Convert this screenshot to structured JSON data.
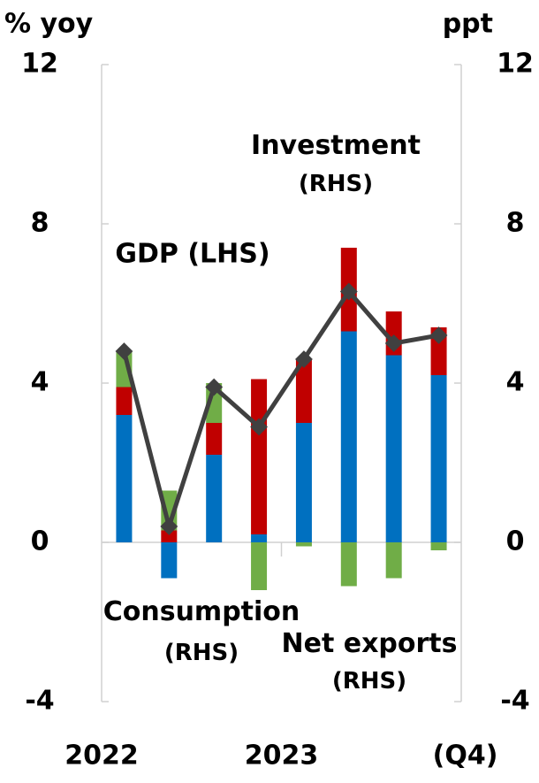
{
  "chart_data": {
    "type": "bar",
    "y_label": "% yoy",
    "y2_label": "ppt",
    "categories": [
      "2022",
      null,
      null,
      null,
      "2023",
      null,
      null,
      "(Q4)"
    ],
    "ylim": [
      -4,
      12
    ],
    "yticks": [
      -4,
      0,
      4,
      8,
      12
    ],
    "y2lim": [
      -4,
      12
    ],
    "y2ticks": [
      -4,
      0,
      4,
      8,
      12
    ],
    "series": [
      {
        "name": "Consumption (RHS)",
        "type": "bar",
        "axis": "y2",
        "color": "#0070c0",
        "values": [
          3.2,
          -0.9,
          2.2,
          0.2,
          3.0,
          5.3,
          4.7,
          4.2
        ]
      },
      {
        "name": "Investment (RHS)",
        "type": "bar",
        "axis": "y2",
        "color": "#c00000",
        "values": [
          0.7,
          0.3,
          0.8,
          3.9,
          1.6,
          2.1,
          1.1,
          1.2
        ]
      },
      {
        "name": "Net exports (RHS)",
        "type": "bar",
        "axis": "y2",
        "color": "#70ad47",
        "values": [
          0.9,
          1.0,
          1.0,
          -1.2,
          -0.1,
          -1.1,
          -0.9,
          -0.2
        ]
      },
      {
        "name": "GDP (LHS)",
        "type": "line",
        "axis": "y",
        "color": "#404040",
        "values": [
          4.8,
          0.4,
          3.9,
          2.9,
          4.6,
          6.3,
          5.0,
          5.2
        ]
      }
    ]
  }
}
